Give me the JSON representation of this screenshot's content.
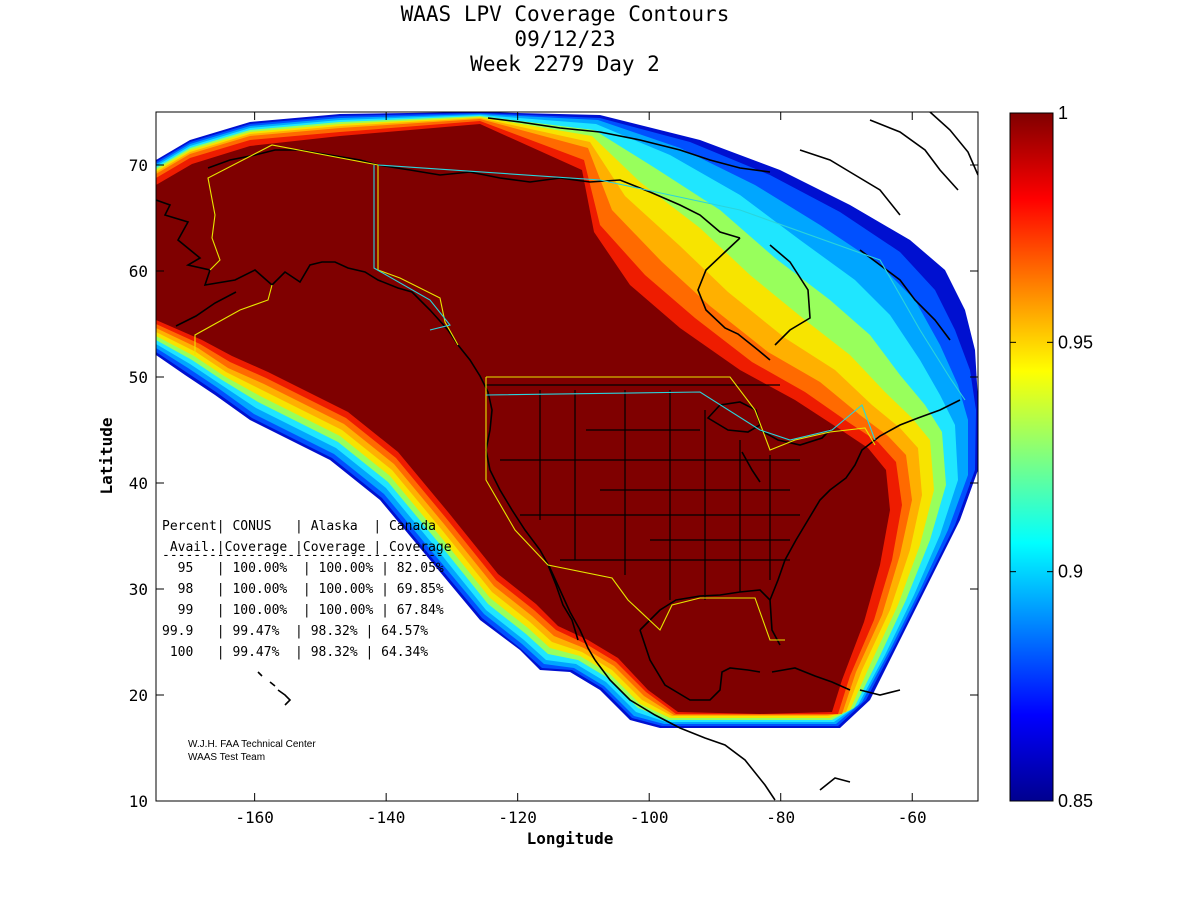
{
  "title": {
    "line1": "WAAS LPV Coverage Contours",
    "line2": "09/12/23",
    "line3": "Week 2279 Day 2"
  },
  "map": {
    "x_axis": {
      "label": "Longitude",
      "range": [
        -175,
        -50
      ],
      "ticks": [
        "-160",
        "-140",
        "-120",
        "-100",
        "-80",
        "-60"
      ],
      "tick_values": [
        -160,
        -140,
        -120,
        -100,
        -80,
        -60
      ]
    },
    "y_axis": {
      "label": "Latitude",
      "range": [
        10,
        75
      ],
      "ticks": [
        "10",
        "20",
        "30",
        "40",
        "50",
        "60",
        "70"
      ],
      "tick_values": [
        10,
        20,
        30,
        40,
        50,
        60,
        70
      ]
    },
    "colorbar": {
      "range": [
        0.85,
        1.0
      ],
      "ticks": [
        "0.85",
        "0.9",
        "0.95",
        "1"
      ],
      "tick_values": [
        0.85,
        0.9,
        0.95,
        1.0
      ],
      "colormap": "jet"
    },
    "contour_colors": [
      "#7f0000",
      "#b20000",
      "#ee1c00",
      "#ff6a00",
      "#ffb000",
      "#f7e400",
      "#98ff5c",
      "#1fe6ff",
      "#00a6ff",
      "#0050ff",
      "#0010d0"
    ]
  },
  "stats": {
    "header1": "Percent| CONUS   | Alaska  | Canada",
    "header2": " Avail.|Coverage |Coverage | Coverage",
    "divider": "------------------------------------",
    "rows": [
      "  95   | 100.00%  | 100.00% | 82.05%",
      "  98   | 100.00%  | 100.00% | 69.85%",
      "  99   | 100.00%  | 100.00% | 67.84%",
      "99.9   | 99.47%  | 98.32% | 64.57%",
      " 100   | 99.47%  | 98.32% | 64.34%"
    ]
  },
  "credit": {
    "line1": "W.J.H. FAA Technical Center",
    "line2": "WAAS Test Team"
  }
}
